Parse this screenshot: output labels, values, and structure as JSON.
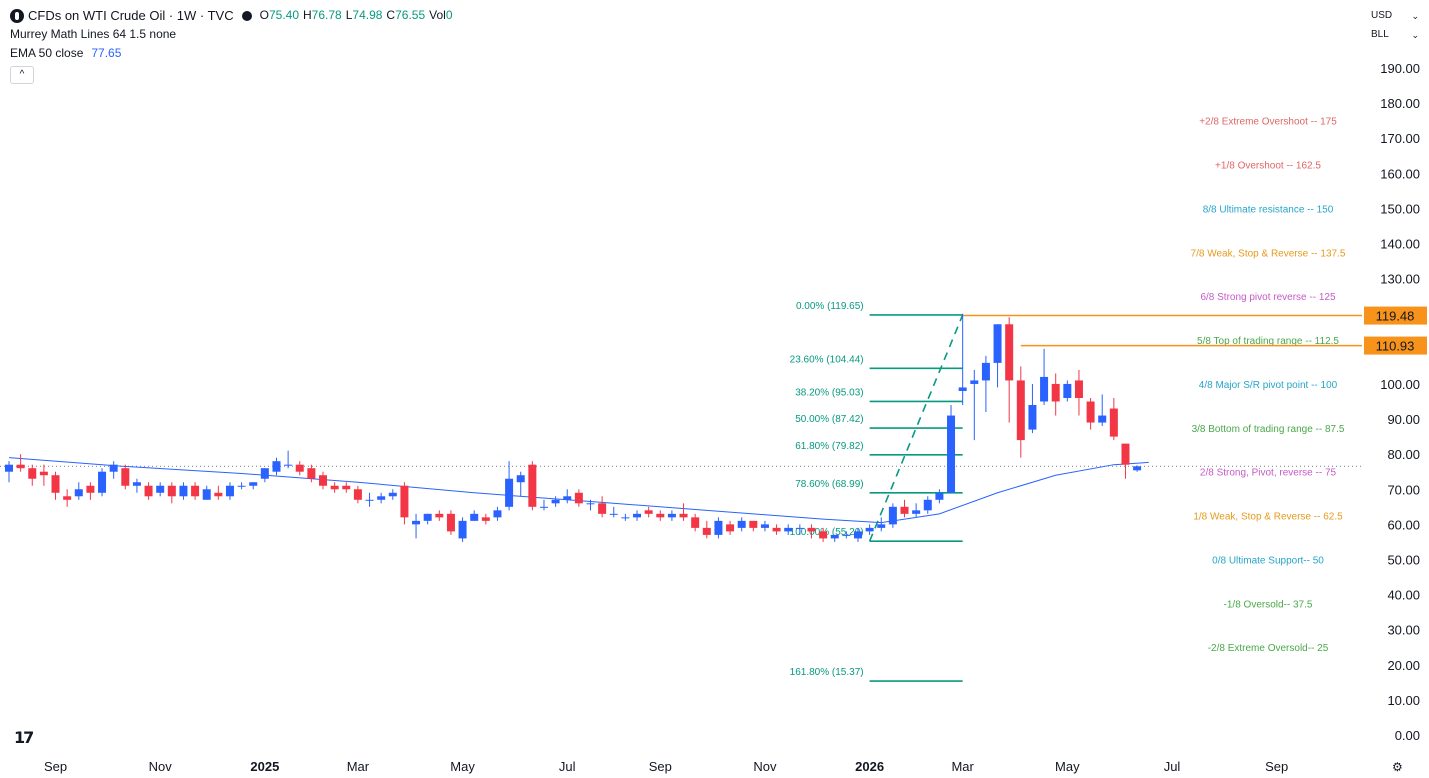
{
  "header": {
    "title": "CFDs on WTI Crude Oil · 1W · TVC",
    "ohlc": [
      {
        "k": "O",
        "v": "75.40"
      },
      {
        "k": "H",
        "v": "76.78"
      },
      {
        "k": "L",
        "v": "74.98"
      },
      {
        "k": "C",
        "v": "76.55"
      },
      {
        "k": "Vol",
        "v": "0"
      }
    ],
    "indicator1": "Murrey Math Lines 64 1.5 none",
    "indicator2_label": "EMA 50 close",
    "indicator2_value": "77.65",
    "collapse_glyph": "^"
  },
  "controls": {
    "currency": "USD",
    "scale": "BLL",
    "chevron": "⌄",
    "settings_glyph": "⚙"
  },
  "colors": {
    "up": "#2962ff",
    "down": "#f23645",
    "ema": "#2962ff",
    "fib": "#089981",
    "hline": "#f7931a",
    "grid_dots": "#787b86"
  },
  "chart_data": {
    "type": "candlestick",
    "symbol": "CFDs on WTI Crude Oil",
    "interval": "1W",
    "y_axis": {
      "ticks": [
        "190.00",
        "180.00",
        "170.00",
        "160.00",
        "150.00",
        "140.00",
        "130.00",
        "120.00",
        "110.00",
        "100.00",
        "90.00",
        "80.00",
        "70.00",
        "60.00",
        "50.00",
        "40.00",
        "30.00",
        "20.00",
        "10.00",
        "0.00"
      ],
      "range": [
        0,
        190
      ]
    },
    "x_axis": {
      "labels": [
        {
          "text": "Sep",
          "idx": 4,
          "bold": false
        },
        {
          "text": "Nov",
          "idx": 13,
          "bold": false
        },
        {
          "text": "2025",
          "idx": 22,
          "bold": true
        },
        {
          "text": "Mar",
          "idx": 30,
          "bold": false
        },
        {
          "text": "May",
          "idx": 39,
          "bold": false
        },
        {
          "text": "Jul",
          "idx": 48,
          "bold": false
        },
        {
          "text": "Sep",
          "idx": 56,
          "bold": false
        },
        {
          "text": "Nov",
          "idx": 65,
          "bold": false
        },
        {
          "text": "2026",
          "idx": 74,
          "bold": true
        },
        {
          "text": "Mar",
          "idx": 82,
          "bold": false
        },
        {
          "text": "May",
          "idx": 91,
          "bold": false
        },
        {
          "text": "Jul",
          "idx": 100,
          "bold": false
        },
        {
          "text": "Sep",
          "idx": 109,
          "bold": false
        }
      ]
    },
    "candles": [
      {
        "o": 75,
        "h": 78,
        "l": 72,
        "c": 77
      },
      {
        "o": 77,
        "h": 80,
        "l": 75,
        "c": 76
      },
      {
        "o": 76,
        "h": 77,
        "l": 71,
        "c": 73
      },
      {
        "o": 75,
        "h": 77,
        "l": 71,
        "c": 74
      },
      {
        "o": 74,
        "h": 75,
        "l": 67,
        "c": 69
      },
      {
        "o": 68,
        "h": 70,
        "l": 65,
        "c": 67
      },
      {
        "o": 68,
        "h": 72,
        "l": 67,
        "c": 70
      },
      {
        "o": 71,
        "h": 72,
        "l": 67,
        "c": 69
      },
      {
        "o": 69,
        "h": 76,
        "l": 68,
        "c": 75
      },
      {
        "o": 75,
        "h": 78,
        "l": 73,
        "c": 77
      },
      {
        "o": 76,
        "h": 77,
        "l": 70,
        "c": 71
      },
      {
        "o": 71,
        "h": 73,
        "l": 69,
        "c": 72
      },
      {
        "o": 71,
        "h": 72,
        "l": 67,
        "c": 68
      },
      {
        "o": 69,
        "h": 72,
        "l": 68,
        "c": 71
      },
      {
        "o": 71,
        "h": 72,
        "l": 66,
        "c": 68
      },
      {
        "o": 68,
        "h": 72,
        "l": 67,
        "c": 71
      },
      {
        "o": 71,
        "h": 72,
        "l": 67,
        "c": 68
      },
      {
        "o": 67,
        "h": 71,
        "l": 67,
        "c": 70
      },
      {
        "o": 69,
        "h": 71,
        "l": 67,
        "c": 68
      },
      {
        "o": 68,
        "h": 72,
        "l": 67,
        "c": 71
      },
      {
        "o": 71,
        "h": 72,
        "l": 70,
        "c": 71
      },
      {
        "o": 71,
        "h": 72,
        "l": 70,
        "c": 72
      },
      {
        "o": 73,
        "h": 76,
        "l": 72,
        "c": 76
      },
      {
        "o": 75,
        "h": 79,
        "l": 74,
        "c": 78
      },
      {
        "o": 77,
        "h": 81,
        "l": 76,
        "c": 77
      },
      {
        "o": 77,
        "h": 78,
        "l": 74,
        "c": 75
      },
      {
        "o": 76,
        "h": 77,
        "l": 72,
        "c": 73
      },
      {
        "o": 74,
        "h": 75,
        "l": 70,
        "c": 71
      },
      {
        "o": 71,
        "h": 72,
        "l": 69,
        "c": 70
      },
      {
        "o": 71,
        "h": 72,
        "l": 69,
        "c": 70
      },
      {
        "o": 70,
        "h": 71,
        "l": 66,
        "c": 67
      },
      {
        "o": 67,
        "h": 69,
        "l": 65,
        "c": 67
      },
      {
        "o": 67,
        "h": 69,
        "l": 66,
        "c": 68
      },
      {
        "o": 68,
        "h": 70,
        "l": 67,
        "c": 69
      },
      {
        "o": 71,
        "h": 72,
        "l": 60,
        "c": 62
      },
      {
        "o": 60,
        "h": 63,
        "l": 56,
        "c": 61
      },
      {
        "o": 61,
        "h": 63,
        "l": 60,
        "c": 63
      },
      {
        "o": 63,
        "h": 64,
        "l": 61,
        "c": 62
      },
      {
        "o": 63,
        "h": 64,
        "l": 57,
        "c": 58
      },
      {
        "o": 56,
        "h": 62,
        "l": 55,
        "c": 61
      },
      {
        "o": 61,
        "h": 64,
        "l": 61,
        "c": 63
      },
      {
        "o": 62,
        "h": 63,
        "l": 60,
        "c": 61
      },
      {
        "o": 62,
        "h": 65,
        "l": 61,
        "c": 64
      },
      {
        "o": 65,
        "h": 78,
        "l": 64,
        "c": 73
      },
      {
        "o": 72,
        "h": 75,
        "l": 68,
        "c": 74
      },
      {
        "o": 77,
        "h": 78,
        "l": 64,
        "c": 65
      },
      {
        "o": 65,
        "h": 67,
        "l": 64,
        "c": 65
      },
      {
        "o": 66,
        "h": 68,
        "l": 65,
        "c": 67
      },
      {
        "o": 67,
        "h": 70,
        "l": 66,
        "c": 68
      },
      {
        "o": 69,
        "h": 70,
        "l": 65,
        "c": 66
      },
      {
        "o": 66,
        "h": 67,
        "l": 64,
        "c": 66
      },
      {
        "o": 66,
        "h": 68,
        "l": 62,
        "c": 63
      },
      {
        "o": 63,
        "h": 65,
        "l": 62,
        "c": 63
      },
      {
        "o": 62,
        "h": 63,
        "l": 61,
        "c": 62
      },
      {
        "o": 62,
        "h": 64,
        "l": 61,
        "c": 63
      },
      {
        "o": 64,
        "h": 65,
        "l": 62,
        "c": 63
      },
      {
        "o": 63,
        "h": 64,
        "l": 61,
        "c": 62
      },
      {
        "o": 62,
        "h": 64,
        "l": 61,
        "c": 63
      },
      {
        "o": 63,
        "h": 66,
        "l": 61,
        "c": 62
      },
      {
        "o": 62,
        "h": 63,
        "l": 58,
        "c": 59
      },
      {
        "o": 59,
        "h": 61,
        "l": 56,
        "c": 57
      },
      {
        "o": 57,
        "h": 62,
        "l": 56,
        "c": 61
      },
      {
        "o": 60,
        "h": 61,
        "l": 57,
        "c": 58
      },
      {
        "o": 59,
        "h": 62,
        "l": 58,
        "c": 61
      },
      {
        "o": 61,
        "h": 61,
        "l": 58,
        "c": 59
      },
      {
        "o": 59,
        "h": 61,
        "l": 58,
        "c": 60
      },
      {
        "o": 59,
        "h": 60,
        "l": 57,
        "c": 58
      },
      {
        "o": 58,
        "h": 60,
        "l": 57,
        "c": 59
      },
      {
        "o": 59,
        "h": 60,
        "l": 57,
        "c": 59
      },
      {
        "o": 59,
        "h": 60,
        "l": 56,
        "c": 58
      },
      {
        "o": 58,
        "h": 59,
        "l": 55,
        "c": 56
      },
      {
        "o": 56,
        "h": 57,
        "l": 55,
        "c": 57
      },
      {
        "o": 57,
        "h": 58,
        "l": 56,
        "c": 57
      },
      {
        "o": 56,
        "h": 59,
        "l": 55,
        "c": 58
      },
      {
        "o": 58,
        "h": 60,
        "l": 57,
        "c": 59
      },
      {
        "o": 59,
        "h": 62,
        "l": 58,
        "c": 60
      },
      {
        "o": 60,
        "h": 66,
        "l": 59,
        "c": 65
      },
      {
        "o": 65,
        "h": 67,
        "l": 62,
        "c": 63
      },
      {
        "o": 63,
        "h": 66,
        "l": 62,
        "c": 64
      },
      {
        "o": 64,
        "h": 68,
        "l": 63,
        "c": 67
      },
      {
        "o": 67,
        "h": 70,
        "l": 66,
        "c": 69
      },
      {
        "o": 69,
        "h": 94,
        "l": 69,
        "c": 91
      },
      {
        "o": 98,
        "h": 120,
        "l": 94,
        "c": 99
      },
      {
        "o": 100,
        "h": 104,
        "l": 84,
        "c": 101
      },
      {
        "o": 101,
        "h": 108,
        "l": 92,
        "c": 106
      },
      {
        "o": 106,
        "h": 117,
        "l": 99,
        "c": 117
      },
      {
        "o": 117,
        "h": 119,
        "l": 89,
        "c": 101
      },
      {
        "o": 101,
        "h": 105,
        "l": 79,
        "c": 84
      },
      {
        "o": 87,
        "h": 100,
        "l": 86,
        "c": 94
      },
      {
        "o": 95,
        "h": 110,
        "l": 94,
        "c": 102
      },
      {
        "o": 100,
        "h": 103,
        "l": 91,
        "c": 95
      },
      {
        "o": 96,
        "h": 101,
        "l": 95,
        "c": 100
      },
      {
        "o": 101,
        "h": 104,
        "l": 91,
        "c": 96
      },
      {
        "o": 95,
        "h": 96,
        "l": 87,
        "c": 89
      },
      {
        "o": 89,
        "h": 97,
        "l": 88,
        "c": 91
      },
      {
        "o": 93,
        "h": 96,
        "l": 84,
        "c": 85
      },
      {
        "o": 83,
        "h": 83,
        "l": 73,
        "c": 77
      },
      {
        "o": 75.4,
        "h": 76.78,
        "l": 74.98,
        "c": 76.55
      }
    ],
    "ema50": [
      [
        0,
        79
      ],
      [
        10,
        76.5
      ],
      [
        20,
        74.5
      ],
      [
        30,
        72
      ],
      [
        40,
        69
      ],
      [
        50,
        66.5
      ],
      [
        60,
        64
      ],
      [
        70,
        61.5
      ],
      [
        75,
        60.5
      ],
      [
        80,
        63
      ],
      [
        85,
        69
      ],
      [
        90,
        74
      ],
      [
        95,
        77
      ],
      [
        98,
        77.65
      ]
    ],
    "fib_levels": [
      {
        "label": "0.00% (119.65)",
        "value": 119.65
      },
      {
        "label": "23.60% (104.44)",
        "value": 104.44
      },
      {
        "label": "38.20% (95.03)",
        "value": 95.03
      },
      {
        "label": "50.00% (87.42)",
        "value": 87.42
      },
      {
        "label": "61.80% (79.82)",
        "value": 79.82
      },
      {
        "label": "78.60% (68.99)",
        "value": 68.99
      },
      {
        "label": "100.00% (55.20)",
        "value": 55.2
      },
      {
        "label": "161.80% (15.37)",
        "value": 15.37
      }
    ],
    "fib_range_idx": [
      74,
      82
    ],
    "trend_line": {
      "from": {
        "idx": 74,
        "value": 55.2
      },
      "to": {
        "idx": 82,
        "value": 119.65
      }
    },
    "murrey_lines": [
      {
        "label": "+2/8 Extreme Overshoot --  175",
        "value": 175,
        "color": "#e06666"
      },
      {
        "label": "+1/8 Overshoot --  162.5",
        "value": 162.5,
        "color": "#e06666"
      },
      {
        "label": "8/8 Ultimate resistance --  150",
        "value": 150,
        "color": "#26a6c8"
      },
      {
        "label": "7/8 Weak, Stop & Reverse --  137.5",
        "value": 137.5,
        "color": "#e69a1c"
      },
      {
        "label": "6/8 Strong pivot reverse --  125",
        "value": 125,
        "color": "#c65ac8"
      },
      {
        "label": "5/8 Top of trading range --  112.5",
        "value": 112.5,
        "color": "#4aa84a"
      },
      {
        "label": "4/8 Major S/R pivot point --  100",
        "value": 100,
        "color": "#26a6c8"
      },
      {
        "label": "3/8 Bottom of trading range --  87.5",
        "value": 87.5,
        "color": "#4aa84a"
      },
      {
        "label": "2/8 Strong, Pivot, reverse --  75",
        "value": 75,
        "color": "#c65ac8"
      },
      {
        "label": "1/8 Weak, Stop & Reverse --  62.5",
        "value": 62.5,
        "color": "#e69a1c"
      },
      {
        "label": "0/8 Ultimate Support--  50",
        "value": 50,
        "color": "#26a6c8"
      },
      {
        "label": "-1/8 Oversold--  37.5",
        "value": 37.5,
        "color": "#4aa84a"
      },
      {
        "label": "-2/8 Extreme Oversold--  25",
        "value": 25,
        "color": "#4aa84a"
      }
    ],
    "horizontal_lines": [
      {
        "value": 119.48,
        "label": "119.48",
        "from_idx": 82
      },
      {
        "value": 110.93,
        "label": "110.93",
        "from_idx": 87
      }
    ],
    "last_price": 76.55
  }
}
